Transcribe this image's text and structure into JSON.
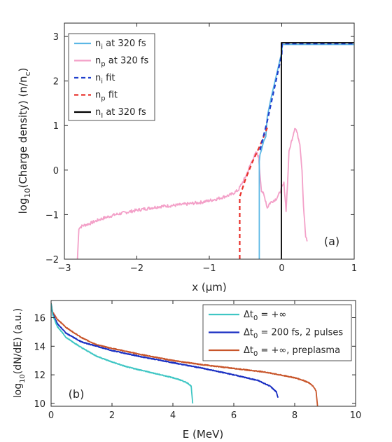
{
  "chart_data": [
    {
      "type": "line",
      "panel_label": "(a)",
      "xlabel": "x (μm)",
      "ylabel": "log10(Charge density) (n/nc)",
      "xlim": [
        -3,
        1
      ],
      "ylim": [
        -2,
        3.3
      ],
      "xticks": [
        -3,
        -2,
        -1,
        0,
        1
      ],
      "yticks": [
        -2,
        -1,
        0,
        1,
        2,
        3
      ],
      "grid": false,
      "legend_position": "top-left",
      "legend": [
        {
          "sym": "n",
          "sub": "i",
          "rest": " at 320 fs",
          "color": "#5bb7e5",
          "dash": false
        },
        {
          "sym": "n",
          "sub": "p",
          "rest": " at 320 fs",
          "color": "#f3a0c8",
          "dash": false
        },
        {
          "sym": "n",
          "sub": "i",
          "rest": " fit",
          "color": "#1f3fcc",
          "dash": true
        },
        {
          "sym": "n",
          "sub": "p",
          "rest": " fit",
          "color": "#e8302a",
          "dash": true
        },
        {
          "sym": "n",
          "sub": "I",
          "rest": " at 320 fs",
          "color": "#000000",
          "dash": false
        }
      ],
      "series": [
        {
          "legend_index": 1,
          "color": "#f3a0c8",
          "dash": false,
          "noise": 0.035,
          "x": [
            -2.82,
            -2.8,
            -2.75,
            -2.65,
            -2.5,
            -2.3,
            -2.0,
            -1.7,
            -1.4,
            -1.1,
            -0.9,
            -0.7,
            -0.6,
            -0.55,
            -0.5,
            -0.45,
            -0.4,
            -0.35,
            -0.32,
            -0.3,
            -0.28,
            -0.25,
            -0.22,
            -0.2,
            -0.17,
            -0.13,
            -0.08,
            -0.04,
            0.0,
            0.03,
            0.06,
            0.08,
            0.1,
            0.12,
            0.15,
            0.18,
            0.2,
            0.25,
            0.28,
            0.3,
            0.33,
            0.35
          ],
          "y": [
            -2.0,
            -1.3,
            -1.25,
            -1.2,
            -1.1,
            -1.0,
            -0.9,
            -0.82,
            -0.78,
            -0.72,
            -0.65,
            -0.55,
            -0.45,
            -0.3,
            -0.15,
            0.05,
            0.25,
            0.4,
            0.3,
            -0.1,
            -0.45,
            -0.55,
            -0.7,
            -0.85,
            -0.75,
            -0.7,
            -0.65,
            -0.55,
            -0.4,
            -0.3,
            -0.9,
            -0.3,
            0.4,
            0.55,
            0.75,
            0.95,
            0.9,
            0.6,
            0.0,
            -0.8,
            -1.5,
            -1.6
          ]
        },
        {
          "legend_index": 0,
          "color": "#5bb7e5",
          "dash": false,
          "noise": 0.0,
          "x": [
            -0.31,
            -0.31,
            -0.3,
            -0.28,
            -0.25,
            -0.22,
            -0.2,
            -0.15,
            -0.1,
            -0.05,
            0.0,
            0.01,
            0.5,
            1.0
          ],
          "y": [
            -2.0,
            0.2,
            0.35,
            0.45,
            0.65,
            0.75,
            1.2,
            1.6,
            1.95,
            2.3,
            2.65,
            2.82,
            2.82,
            2.82
          ]
        },
        {
          "legend_index": 3,
          "color": "#e8302a",
          "dash": true,
          "noise": 0.0,
          "x": [
            -0.58,
            -0.58,
            -0.5,
            -0.4,
            -0.3,
            -0.2
          ],
          "y": [
            -2.0,
            -0.6,
            -0.2,
            0.2,
            0.55,
            0.95
          ]
        },
        {
          "legend_index": 2,
          "color": "#1f3fcc",
          "dash": true,
          "noise": 0.0,
          "x": [
            -0.3,
            -0.2,
            -0.1,
            0.0,
            0.005,
            0.5,
            1.0
          ],
          "y": [
            0.45,
            1.1,
            1.85,
            2.6,
            2.84,
            2.84,
            2.84
          ]
        },
        {
          "legend_index": 4,
          "color": "#000000",
          "dash": false,
          "noise": 0.0,
          "x": [
            -0.005,
            -0.005,
            0.005,
            0.5,
            1.0
          ],
          "y": [
            -2.0,
            2.86,
            2.86,
            2.86,
            2.86
          ]
        }
      ]
    },
    {
      "type": "line",
      "panel_label": "(b)",
      "xlabel": "E (MeV)",
      "ylabel": "log10(dN/dE) (a.u.)",
      "xlim": [
        0,
        10
      ],
      "ylim": [
        9.8,
        17.2
      ],
      "xticks": [
        0,
        2,
        4,
        6,
        8,
        10
      ],
      "yticks": [
        10,
        12,
        14,
        16
      ],
      "grid": false,
      "legend_position": "top-right",
      "legend": [
        {
          "label": "Δt",
          "sub": "0",
          "rest": " = +∞",
          "color": "#3fc6c4",
          "dash": false
        },
        {
          "label": "Δt",
          "sub": "0",
          "rest": " = 200 fs, 2 pulses",
          "color": "#1a2fc2",
          "dash": false
        },
        {
          "label": "Δt",
          "sub": "0",
          "rest": " = +∞, preplasma",
          "color": "#c8552a",
          "dash": false
        }
      ],
      "series": [
        {
          "legend_index": 2,
          "color": "#c8552a",
          "dash": false,
          "noise": 0.03,
          "x": [
            0.0,
            0.05,
            0.2,
            0.5,
            1.0,
            1.5,
            2.0,
            3.0,
            4.0,
            5.0,
            6.0,
            7.0,
            7.5,
            8.0,
            8.3,
            8.5,
            8.6,
            8.7,
            8.75
          ],
          "y": [
            17.0,
            16.4,
            15.9,
            15.3,
            14.6,
            14.1,
            13.85,
            13.4,
            13.0,
            12.7,
            12.45,
            12.2,
            12.0,
            11.8,
            11.6,
            11.4,
            11.2,
            10.9,
            9.8
          ]
        },
        {
          "legend_index": 1,
          "color": "#1a2fc2",
          "dash": false,
          "noise": 0.03,
          "x": [
            0.0,
            0.05,
            0.2,
            0.5,
            1.0,
            1.5,
            2.0,
            3.0,
            4.0,
            5.0,
            6.0,
            6.8,
            7.2,
            7.4,
            7.45
          ],
          "y": [
            17.0,
            16.3,
            15.6,
            14.9,
            14.3,
            14.0,
            13.7,
            13.25,
            12.85,
            12.45,
            12.0,
            11.6,
            11.2,
            10.8,
            10.4
          ]
        },
        {
          "legend_index": 0,
          "color": "#3fc6c4",
          "dash": false,
          "noise": 0.03,
          "x": [
            0.0,
            0.05,
            0.2,
            0.5,
            1.0,
            1.5,
            2.0,
            2.5,
            3.0,
            3.5,
            4.0,
            4.3,
            4.5,
            4.6,
            4.65
          ],
          "y": [
            17.0,
            16.2,
            15.4,
            14.6,
            13.9,
            13.3,
            12.9,
            12.55,
            12.3,
            12.05,
            11.8,
            11.6,
            11.4,
            11.2,
            10.0
          ]
        }
      ]
    }
  ]
}
